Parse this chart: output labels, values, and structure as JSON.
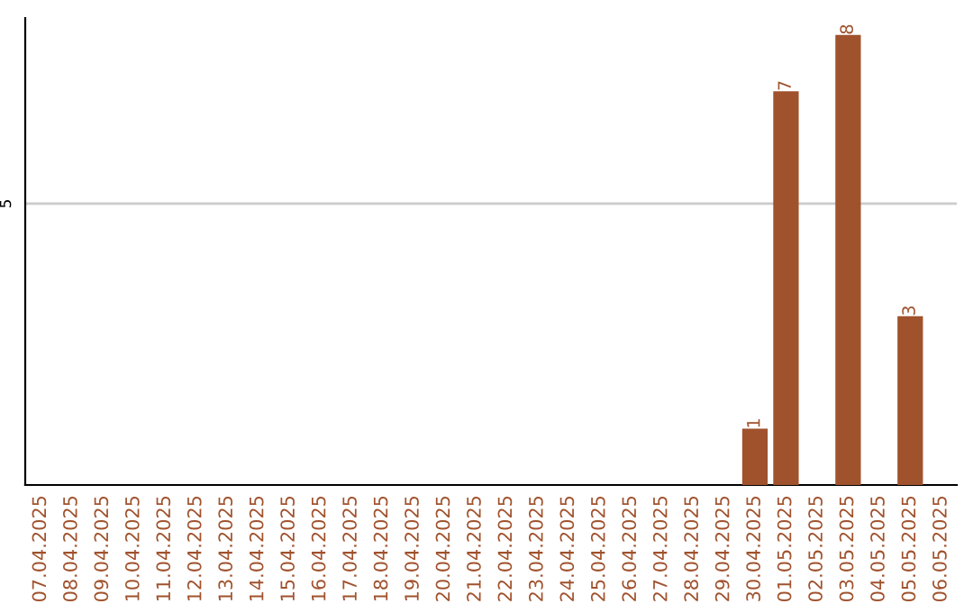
{
  "chart_data": {
    "type": "bar",
    "categories": [
      "07.04.2025",
      "08.04.2025",
      "09.04.2025",
      "10.04.2025",
      "11.04.2025",
      "12.04.2025",
      "13.04.2025",
      "14.04.2025",
      "15.04.2025",
      "16.04.2025",
      "17.04.2025",
      "18.04.2025",
      "19.04.2025",
      "20.04.2025",
      "21.04.2025",
      "22.04.2025",
      "23.04.2025",
      "24.04.2025",
      "25.04.2025",
      "26.04.2025",
      "27.04.2025",
      "28.04.2025",
      "29.04.2025",
      "30.04.2025",
      "01.05.2025",
      "02.05.2025",
      "03.05.2025",
      "04.05.2025",
      "05.05.2025",
      "06.05.2025"
    ],
    "values": [
      null,
      null,
      null,
      null,
      null,
      null,
      null,
      null,
      null,
      null,
      null,
      null,
      null,
      null,
      null,
      null,
      null,
      null,
      null,
      null,
      null,
      null,
      null,
      1,
      7,
      null,
      8,
      null,
      3,
      null
    ],
    "data_labels": true,
    "color": "#a0522d",
    "ylim": [
      0,
      8.3
    ],
    "ref_lines": [
      {
        "axis": "y",
        "value": 5,
        "label": "5",
        "color": "#cccccc"
      }
    ],
    "legend": false
  }
}
